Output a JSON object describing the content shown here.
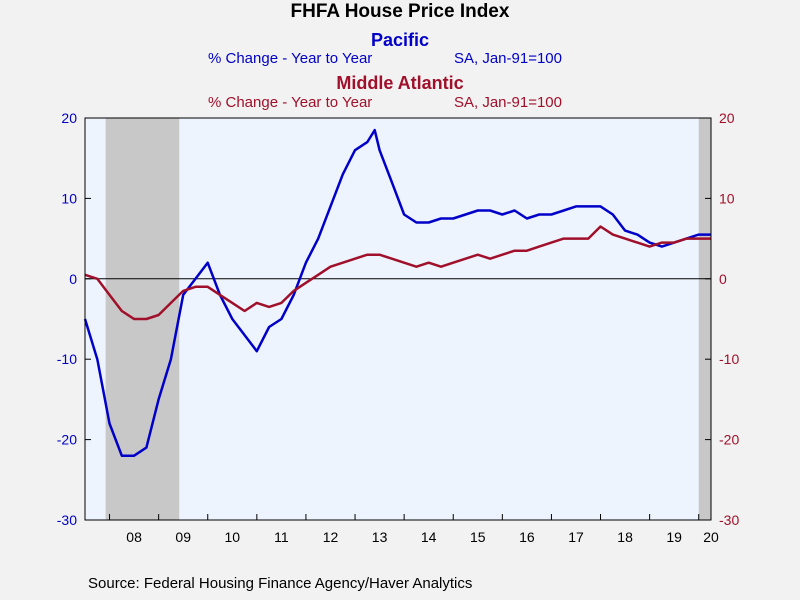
{
  "chart_data": {
    "type": "line",
    "title": "FHFA House Price Index",
    "series": [
      {
        "name": "Pacific",
        "subtitle": "% Change - Year to Year",
        "note": "SA, Jan-91=100",
        "color": "#0000c8",
        "axis": "left",
        "x": [
          2007.5,
          2007.75,
          2008.0,
          2008.25,
          2008.5,
          2008.75,
          2009.0,
          2009.25,
          2009.5,
          2009.75,
          2010.0,
          2010.25,
          2010.5,
          2010.75,
          2011.0,
          2011.25,
          2011.5,
          2011.75,
          2012.0,
          2012.25,
          2012.5,
          2012.75,
          2013.0,
          2013.25,
          2013.4,
          2013.5,
          2013.75,
          2014.0,
          2014.25,
          2014.5,
          2014.75,
          2015.0,
          2015.25,
          2015.5,
          2015.75,
          2016.0,
          2016.25,
          2016.5,
          2016.75,
          2017.0,
          2017.25,
          2017.5,
          2017.75,
          2018.0,
          2018.25,
          2018.5,
          2018.75,
          2019.0,
          2019.25,
          2019.5,
          2019.75,
          2020.0,
          2020.25
        ],
        "values": [
          -5,
          -10,
          -18,
          -22,
          -22,
          -21,
          -15,
          -10,
          -2,
          0,
          2,
          -2,
          -5,
          -7,
          -9,
          -6,
          -5,
          -2,
          2,
          5,
          9,
          13,
          16,
          17,
          18.5,
          16,
          12,
          8,
          7,
          7,
          7.5,
          7.5,
          8,
          8.5,
          8.5,
          8,
          8.5,
          7.5,
          8,
          8,
          8.5,
          9,
          9,
          9,
          8,
          6,
          5.5,
          4.5,
          4,
          4.5,
          5,
          5.5,
          5.5
        ]
      },
      {
        "name": "Middle Atlantic",
        "subtitle": "% Change - Year to Year",
        "note": "SA, Jan-91=100",
        "color": "#a0102a",
        "axis": "right",
        "x": [
          2007.5,
          2007.75,
          2008.0,
          2008.25,
          2008.5,
          2008.75,
          2009.0,
          2009.25,
          2009.5,
          2009.75,
          2010.0,
          2010.25,
          2010.5,
          2010.75,
          2011.0,
          2011.25,
          2011.5,
          2011.75,
          2012.0,
          2012.25,
          2012.5,
          2012.75,
          2013.0,
          2013.25,
          2013.5,
          2013.75,
          2014.0,
          2014.25,
          2014.5,
          2014.75,
          2015.0,
          2015.25,
          2015.5,
          2015.75,
          2016.0,
          2016.25,
          2016.5,
          2016.75,
          2017.0,
          2017.25,
          2017.5,
          2017.75,
          2018.0,
          2018.25,
          2018.5,
          2018.75,
          2019.0,
          2019.25,
          2019.5,
          2019.75,
          2020.0,
          2020.25
        ],
        "values": [
          0.5,
          0,
          -2,
          -4,
          -5,
          -5,
          -4.5,
          -3,
          -1.5,
          -1,
          -1,
          -2,
          -3,
          -4,
          -3,
          -3.5,
          -3,
          -1.5,
          -0.5,
          0.5,
          1.5,
          2,
          2.5,
          3,
          3,
          2.5,
          2,
          1.5,
          2,
          1.5,
          2,
          2.5,
          3,
          2.5,
          3,
          3.5,
          3.5,
          4,
          4.5,
          5,
          5,
          5,
          6.5,
          5.5,
          5,
          4.5,
          4,
          4.5,
          4.5,
          5,
          5,
          5
        ]
      }
    ],
    "x_tick_labels": [
      "08",
      "09",
      "10",
      "11",
      "12",
      "13",
      "14",
      "15",
      "16",
      "17",
      "18",
      "19",
      "20"
    ],
    "x_tick_years": [
      2008,
      2009,
      2010,
      2011,
      2012,
      2013,
      2014,
      2015,
      2016,
      2017,
      2018,
      2019,
      2020
    ],
    "xlim": [
      2007.5,
      2020.25
    ],
    "ylim": [
      -30,
      20
    ],
    "y_ticks": [
      20,
      10,
      0,
      -10,
      -20,
      -30
    ],
    "recessions": [
      [
        2007.92,
        2009.42
      ],
      [
        2020.0,
        2020.25
      ]
    ],
    "source": "Source:  Federal Housing Finance Agency/Haver Analytics",
    "colors": {
      "left_axis": "#0000c8",
      "right_axis": "#a0102a",
      "plot_bg": "#eef4fe",
      "recession": "#c8c8c8",
      "page_bg": "#f2f2f2"
    }
  }
}
